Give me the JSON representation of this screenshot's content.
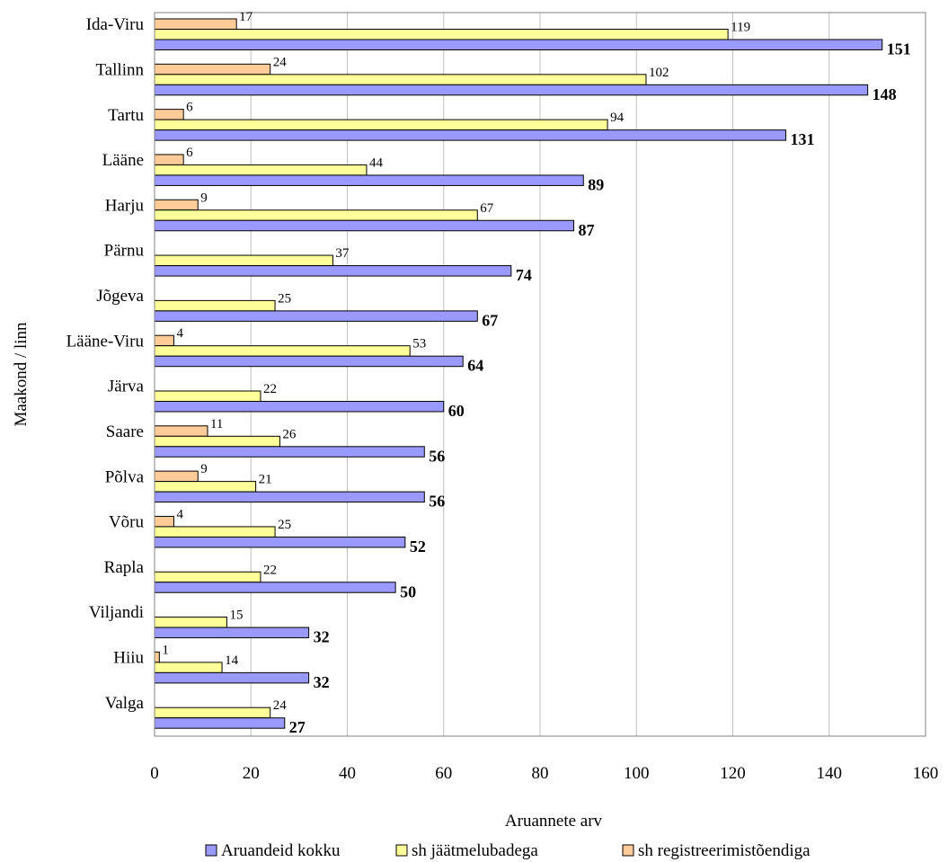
{
  "chart_data": {
    "type": "bar",
    "orientation": "horizontal",
    "title": "",
    "xlabel": "Aruannete arv",
    "ylabel": "Maakond / linn",
    "xlim": [
      0,
      160
    ],
    "xticks": [
      0,
      20,
      40,
      60,
      80,
      100,
      120,
      140,
      160
    ],
    "grid": "vertical",
    "legend_position": "bottom",
    "categories": [
      "Ida-Viru",
      "Tallinn",
      "Tartu",
      "Lääne",
      "Harju",
      "Pärnu",
      "Jõgeva",
      "Lääne-Viru",
      "Järva",
      "Saare",
      "Põlva",
      "Võru",
      "Rapla",
      "Viljandi",
      "Hiiu",
      "Valga"
    ],
    "series": [
      {
        "name": "Aruandeid kokku",
        "color": "#9999ff",
        "values": [
          151,
          148,
          131,
          89,
          87,
          74,
          67,
          64,
          60,
          56,
          56,
          52,
          50,
          32,
          32,
          27
        ]
      },
      {
        "name": "sh jäätmelubadega",
        "color": "#ffff99",
        "values": [
          119,
          102,
          94,
          44,
          67,
          37,
          25,
          53,
          22,
          26,
          21,
          25,
          22,
          15,
          14,
          24
        ]
      },
      {
        "name": "sh registreerimistõendiga",
        "color": "#ffcc99",
        "values": [
          17,
          24,
          6,
          6,
          9,
          null,
          null,
          4,
          null,
          11,
          9,
          4,
          null,
          null,
          1,
          null
        ]
      }
    ]
  }
}
